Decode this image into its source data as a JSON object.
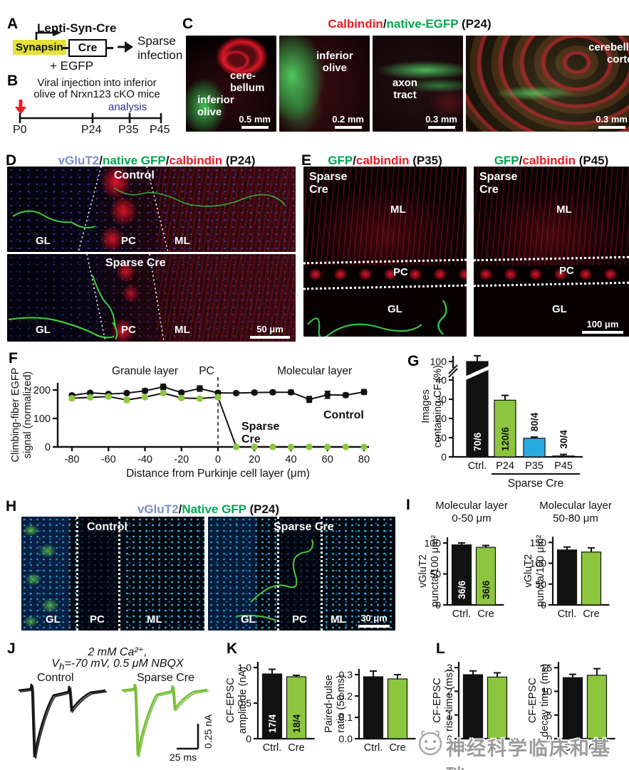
{
  "panels": {
    "a": {
      "label": "A",
      "construct": "Lenti-Syn-Cre",
      "promoter": "Synapsin",
      "gene": "Cre",
      "egfp": "+ EGFP",
      "result_l1": "Sparse",
      "result_l2": "infection"
    },
    "b": {
      "label": "B",
      "line1": "Viral injection into inferior",
      "line2": "olive of Nrxn123 cKO mice",
      "analysis": "analysis",
      "timepoints": [
        "P0",
        "P24",
        "P35",
        "P45"
      ]
    },
    "c": {
      "label": "C",
      "title": {
        "red": "Calbindin",
        "slash": "/",
        "green": "native-EGFP",
        "rest": " (P24)"
      },
      "images": [
        {
          "region1_l1": "cere-",
          "region1_l2": "bellum",
          "region2_l1": "inferior",
          "region2_l2": "olive",
          "scale": "0.5 mm"
        },
        {
          "region_l1": "inferior",
          "region_l2": "olive",
          "scale": "0.2 mm"
        },
        {
          "region_l1": "axon",
          "region_l2": "tract",
          "scale": "0.3 mm"
        },
        {
          "region_l1": "cerebellar",
          "region_l2": "cortex",
          "scale": "0.3 mm"
        }
      ]
    },
    "d": {
      "label": "D",
      "title": {
        "blue": "vGluT2",
        "s1": "/",
        "green": "native GFP",
        "s2": "/",
        "red": "calbindin",
        "rest": " (P24)"
      },
      "images": [
        {
          "name": "Control",
          "gl": "GL",
          "pc": "PC",
          "ml": "ML"
        },
        {
          "name": "Sparse Cre",
          "gl": "GL",
          "pc": "PC",
          "ml": "ML",
          "scale": "50 μm"
        }
      ]
    },
    "e": {
      "label": "E",
      "titles": [
        {
          "green": "GFP",
          "slash": "/",
          "red": "calbindin",
          "rest": " (P35)"
        },
        {
          "green": "GFP",
          "slash": "/",
          "red": "calbindin",
          "rest": " (P45)"
        }
      ],
      "images": [
        {
          "name_l1": "Sparse",
          "name_l2": "Cre",
          "ml": "ML",
          "pc": "PC",
          "gl": "GL"
        },
        {
          "name_l1": "Sparse",
          "name_l2": "Cre",
          "ml": "ML",
          "pc": "PC",
          "gl": "GL",
          "scale": "100 μm"
        }
      ]
    },
    "f": {
      "label": "F"
    },
    "g": {
      "label": "G"
    },
    "h": {
      "label": "H",
      "title": {
        "blue": "vGluT2",
        "slash": "/",
        "green": "Native GFP",
        "rest": " (P24)"
      },
      "images": [
        {
          "name": "Control",
          "gl": "GL",
          "pc": "PC",
          "ml": "ML"
        },
        {
          "name": "Sparse Cre",
          "gl": "GL",
          "pc": "PC",
          "ml": "ML",
          "scale": "30 μm"
        }
      ]
    },
    "i": {
      "label": "I"
    },
    "j": {
      "label": "J",
      "cond_l1": "2 mM Ca²⁺,",
      "cond_l2_pre": "V",
      "cond_l2_sub": "h",
      "cond_l2_rest": "=-70 mV, 0.5 μM NBQX",
      "trace1": "Control",
      "trace2": "Sparse Cre",
      "scale_v": "0.25 nA",
      "scale_h": "25 ms"
    },
    "k": {
      "label": "K"
    },
    "l": {
      "label": "L"
    }
  },
  "watermark": {
    "text": "神经科学临床和基础"
  },
  "colors": {
    "green_bar": "#8CC63F",
    "green_text": "#00A651",
    "red_text": "#EC1C24",
    "blue_text": "#7A8FC9",
    "blue_bar": "#29ABE2",
    "navy": "#2E3192"
  },
  "chart_data": [
    {
      "id": "chartF",
      "type": "line",
      "xlabel": "Distance from Purkinje cell layer (μm)",
      "ylabel": "Climbing-fiber EGFP\nsignal (normalized)",
      "x": [
        -80,
        -70,
        -60,
        -50,
        -40,
        -30,
        -20,
        -10,
        0,
        10,
        20,
        30,
        40,
        50,
        60,
        70,
        80
      ],
      "xticks": [
        -80,
        -60,
        -40,
        -20,
        0,
        20,
        40,
        60,
        80
      ],
      "yticks": [
        0,
        100,
        200
      ],
      "ylim": [
        0,
        230
      ],
      "region_labels": [
        "Granule layer",
        "PC",
        "Molecular layer"
      ],
      "series": [
        {
          "name": "Control",
          "marker_color": "#111111",
          "values": [
            181,
            190,
            186,
            189,
            197,
            211,
            191,
            205,
            190,
            189,
            191,
            192,
            192,
            167,
            183,
            182,
            193
          ],
          "errors": [
            6,
            5,
            5,
            5,
            7,
            9,
            6,
            9,
            6,
            5,
            6,
            6,
            7,
            10,
            12,
            7,
            8
          ]
        },
        {
          "name": "Sparse Cre",
          "marker_color": "#8CC63F",
          "values": [
            171,
            174,
            177,
            165,
            175,
            189,
            172,
            170,
            175,
            0,
            0,
            0,
            0,
            0,
            0,
            0,
            0
          ],
          "errors": [
            5,
            5,
            5,
            8,
            6,
            5,
            5,
            5,
            6,
            0,
            0,
            0,
            0,
            0,
            0,
            0,
            0
          ]
        }
      ]
    },
    {
      "id": "chartG",
      "type": "bar",
      "ylabel": "Images\ncontaining CF (%)",
      "yticks": [
        0,
        10,
        20,
        30,
        40,
        100
      ],
      "axis_break": true,
      "categories": [
        "Ctrl.",
        "P24",
        "P35",
        "P45"
      ],
      "values": [
        100,
        29.5,
        9.7,
        0.5
      ],
      "errors": [
        3,
        2.5,
        0.6,
        0.8
      ],
      "colors": [
        "#111111",
        "#8CC63F",
        "#29ABE2",
        "#111111"
      ],
      "bar_labels": [
        {
          "text": "70/6",
          "pos": "inside",
          "color": "#ffffff"
        },
        {
          "text": "120/6",
          "pos": "inside",
          "color": "#111111"
        },
        {
          "text": "80/4",
          "pos": "above",
          "color": "#111111"
        },
        {
          "text": "30/4",
          "pos": "above",
          "color": "#111111"
        }
      ],
      "group": {
        "label": "Sparse Cre",
        "from": 1,
        "to": 3
      }
    },
    {
      "id": "chartI1",
      "type": "bar",
      "title": "Molecular layer\n0-50 μm",
      "ylabel": "vGluT2\npuncta/100 μm²",
      "yticks": [
        0,
        50,
        100
      ],
      "categories": [
        "Ctrl.",
        "Cre"
      ],
      "values": [
        97,
        93
      ],
      "errors": [
        3,
        3
      ],
      "colors": [
        "#111111",
        "#8CC63F"
      ],
      "bar_labels": [
        {
          "text": "36/6",
          "pos": "inside",
          "color": "#ffffff"
        },
        {
          "text": "36/6",
          "pos": "inside",
          "color": "#111111"
        }
      ]
    },
    {
      "id": "chartI2",
      "type": "bar",
      "title": "Molecular layer\n50-80 μm",
      "ylabel": "vGluT2\npuncta/100 μm²",
      "yticks": [
        0,
        50,
        100,
        150
      ],
      "categories": [
        "Ctrl.",
        "Cre"
      ],
      "values": [
        132,
        127
      ],
      "errors": [
        7,
        10
      ],
      "colors": [
        "#111111",
        "#8CC63F"
      ]
    },
    {
      "id": "chartK1",
      "type": "bar",
      "ylabel": "CF-EPSC\namplitude (nA)",
      "yticks": [
        0,
        0.5,
        1
      ],
      "ytick_labels": [
        "0",
        "0.5",
        "1.0"
      ],
      "categories": [
        "Ctrl.",
        "Cre"
      ],
      "values": [
        0.91,
        0.87
      ],
      "errors": [
        0.065,
        0.02
      ],
      "colors": [
        "#111111",
        "#8CC63F"
      ],
      "bar_labels": [
        {
          "text": "17/4",
          "pos": "inside",
          "color": "#ffffff"
        },
        {
          "text": "18/4",
          "pos": "inside",
          "color": "#111111"
        }
      ]
    },
    {
      "id": "chartK2",
      "type": "bar",
      "ylabel": "Paired-pulse\nratio (50 ms)",
      "yticks": [
        0,
        0.1,
        0.2,
        0.3
      ],
      "ytick_labels": [
        "0.0",
        "0.1",
        "0.2",
        "0.3"
      ],
      "categories": [
        "Ctrl.",
        "Cre"
      ],
      "values": [
        0.29,
        0.28
      ],
      "errors": [
        0.027,
        0.02
      ],
      "colors": [
        "#111111",
        "#8CC63F"
      ]
    },
    {
      "id": "chartL1",
      "type": "bar",
      "ylabel": "CF-EPSC\nrise time (ms)",
      "yticks": [
        0,
        1,
        2,
        3
      ],
      "categories": [
        "Ctrl.",
        "Cre"
      ],
      "values": [
        2.7,
        2.6
      ],
      "errors": [
        0.16,
        0.18
      ],
      "colors": [
        "#111111",
        "#8CC63F"
      ]
    },
    {
      "id": "chartL2",
      "type": "bar",
      "ylabel": "CF-EPSC\ndecay time (ms)",
      "yticks": [
        0,
        5,
        10,
        15
      ],
      "categories": [
        "Ctrl.",
        "Cre"
      ],
      "values": [
        12.9,
        13.4
      ],
      "errors": [
        0.7,
        1.4
      ],
      "colors": [
        "#111111",
        "#8CC63F"
      ]
    }
  ]
}
